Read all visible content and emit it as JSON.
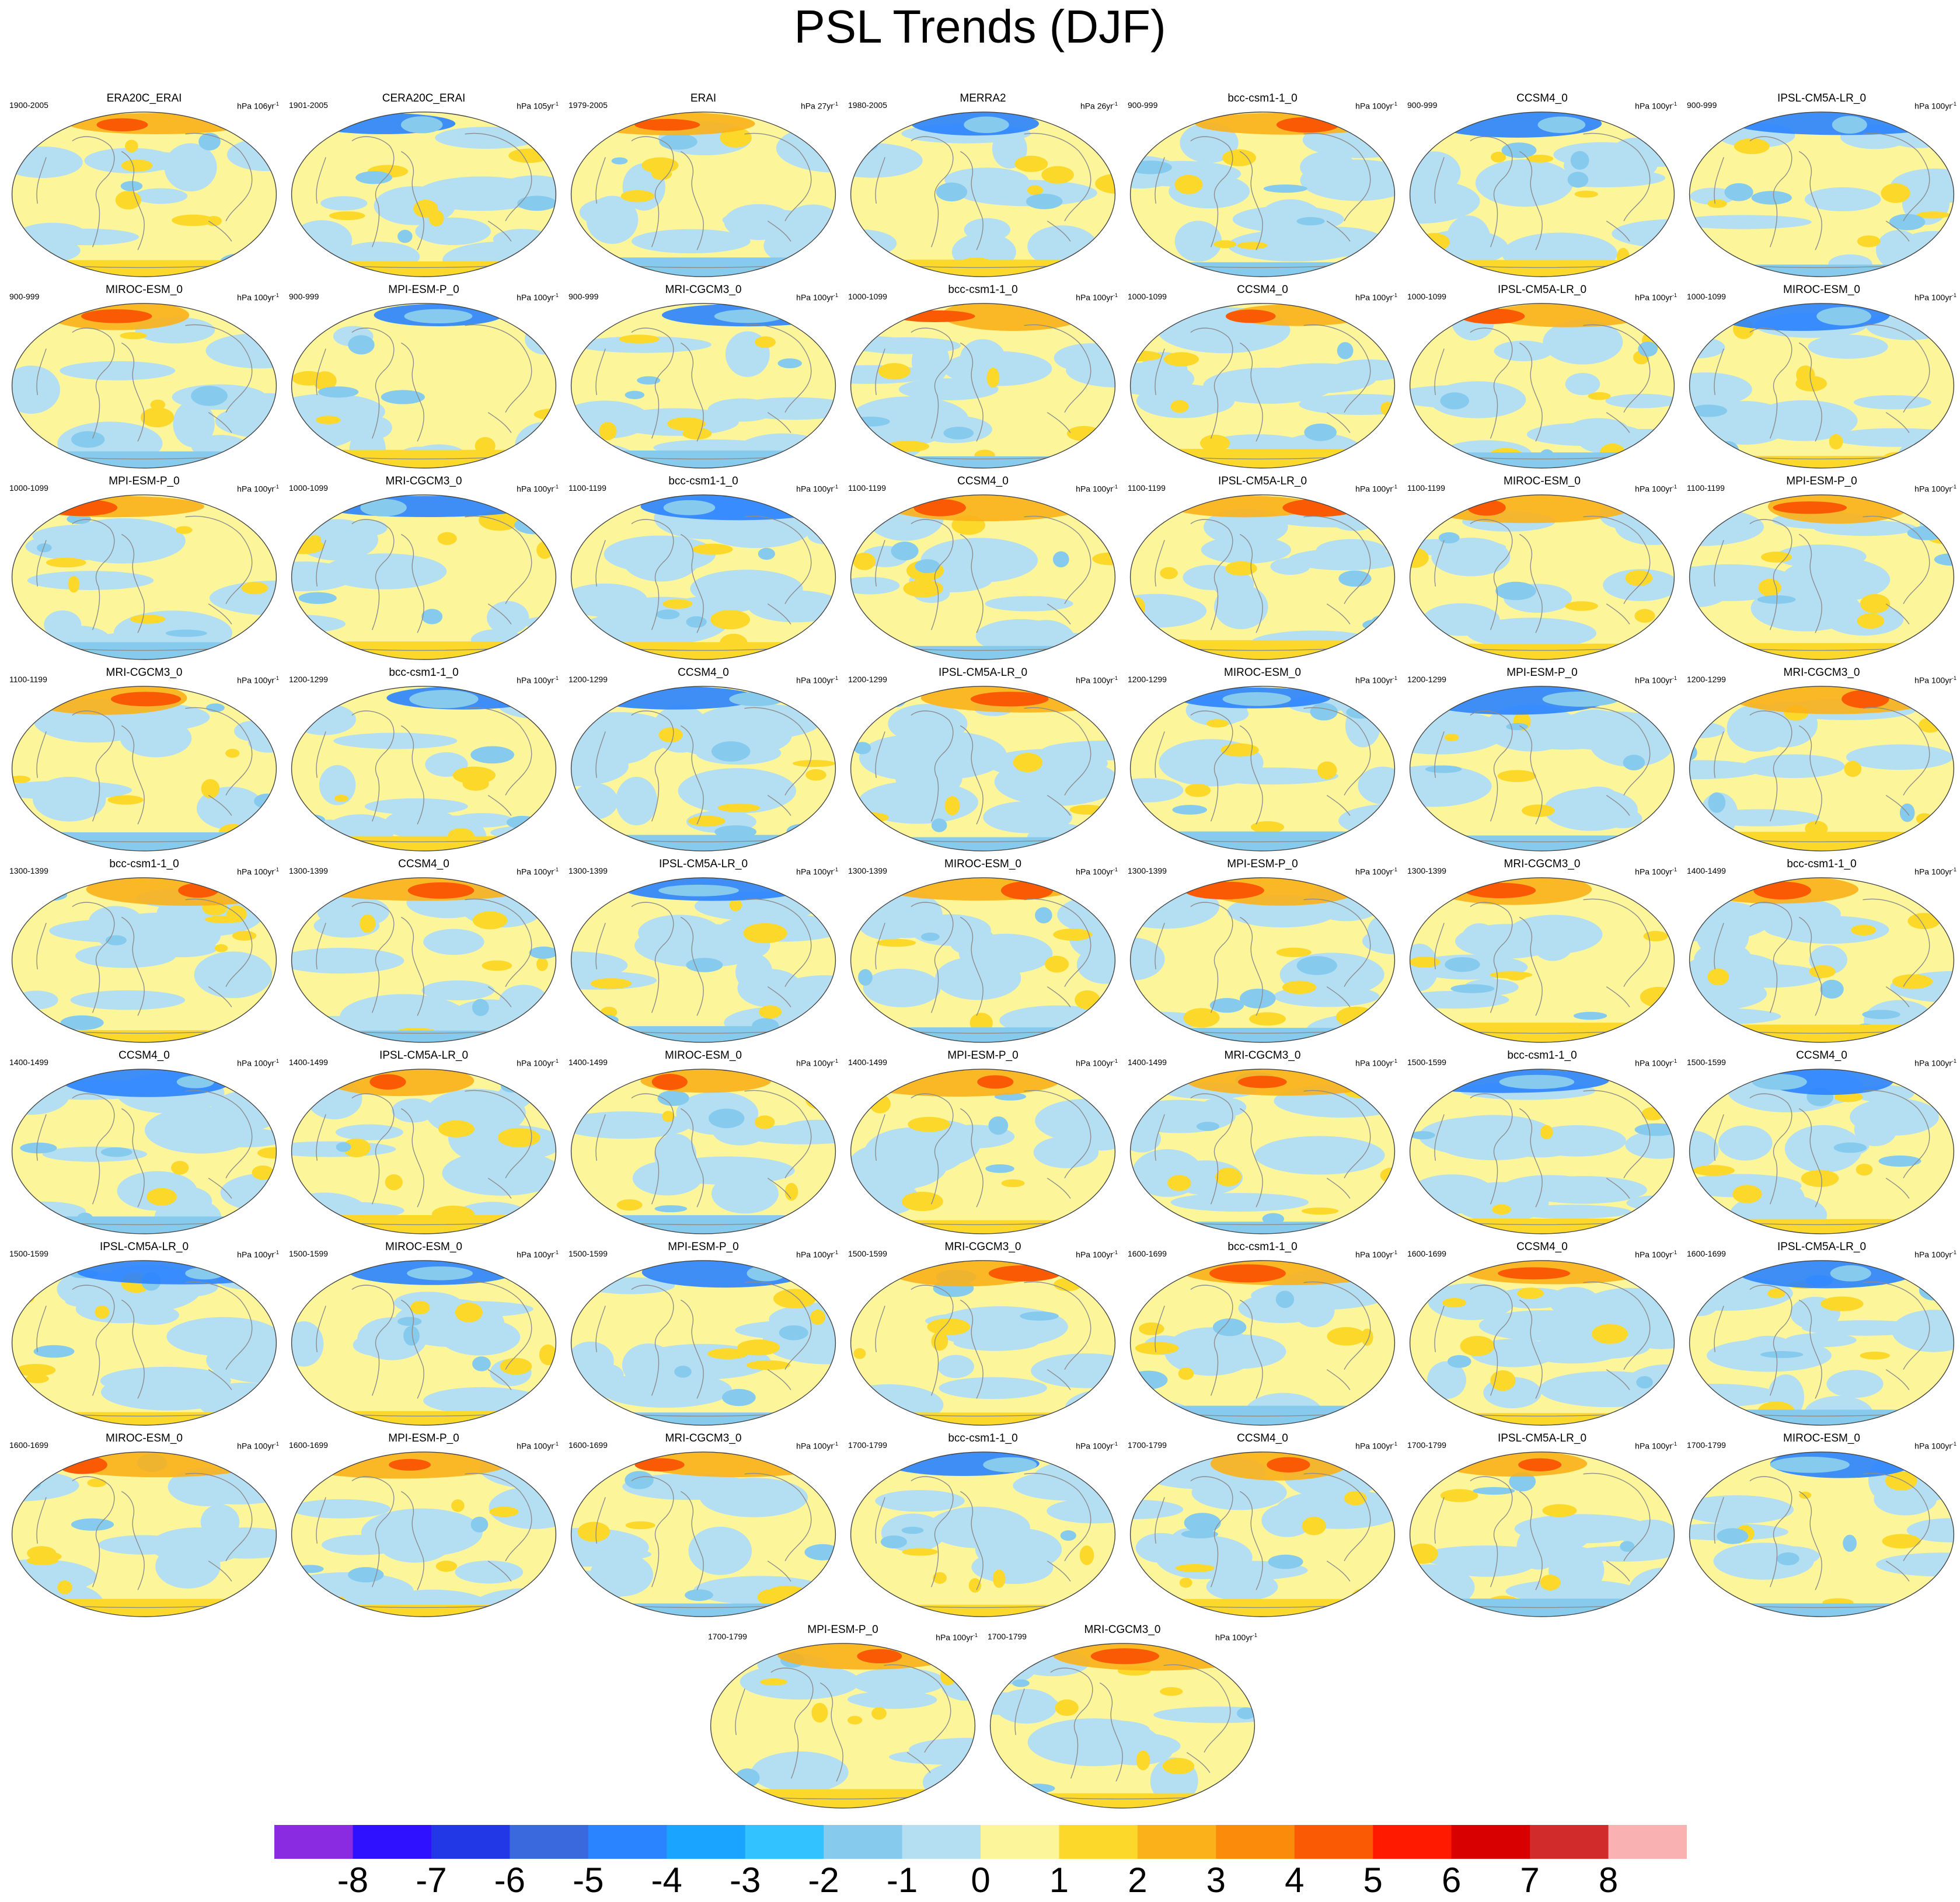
{
  "title": "PSL Trends (DJF)",
  "panels": [
    {
      "name": "ERA20C_ERAI",
      "period": "1900-2005",
      "units_base": "hPa 106yr",
      "units_exp": "-1"
    },
    {
      "name": "CERA20C_ERAI",
      "period": "1901-2005",
      "units_base": "hPa 105yr",
      "units_exp": "-1"
    },
    {
      "name": "ERAI",
      "period": "1979-2005",
      "units_base": "hPa 27yr",
      "units_exp": "-1"
    },
    {
      "name": "MERRA2",
      "period": "1980-2005",
      "units_base": "hPa 26yr",
      "units_exp": "-1"
    },
    {
      "name": "bcc-csm1-1_0",
      "period": "900-999",
      "units_base": "hPa 100yr",
      "units_exp": "-1"
    },
    {
      "name": "CCSM4_0",
      "period": "900-999",
      "units_base": "hPa 100yr",
      "units_exp": "-1"
    },
    {
      "name": "IPSL-CM5A-LR_0",
      "period": "900-999",
      "units_base": "hPa 100yr",
      "units_exp": "-1"
    },
    {
      "name": "MIROC-ESM_0",
      "period": "900-999",
      "units_base": "hPa 100yr",
      "units_exp": "-1"
    },
    {
      "name": "MPI-ESM-P_0",
      "period": "900-999",
      "units_base": "hPa 100yr",
      "units_exp": "-1"
    },
    {
      "name": "MRI-CGCM3_0",
      "period": "900-999",
      "units_base": "hPa 100yr",
      "units_exp": "-1"
    },
    {
      "name": "bcc-csm1-1_0",
      "period": "1000-1099",
      "units_base": "hPa 100yr",
      "units_exp": "-1"
    },
    {
      "name": "CCSM4_0",
      "period": "1000-1099",
      "units_base": "hPa 100yr",
      "units_exp": "-1"
    },
    {
      "name": "IPSL-CM5A-LR_0",
      "period": "1000-1099",
      "units_base": "hPa 100yr",
      "units_exp": "-1"
    },
    {
      "name": "MIROC-ESM_0",
      "period": "1000-1099",
      "units_base": "hPa 100yr",
      "units_exp": "-1"
    },
    {
      "name": "MPI-ESM-P_0",
      "period": "1000-1099",
      "units_base": "hPa 100yr",
      "units_exp": "-1"
    },
    {
      "name": "MRI-CGCM3_0",
      "period": "1000-1099",
      "units_base": "hPa 100yr",
      "units_exp": "-1"
    },
    {
      "name": "bcc-csm1-1_0",
      "period": "1100-1199",
      "units_base": "hPa 100yr",
      "units_exp": "-1"
    },
    {
      "name": "CCSM4_0",
      "period": "1100-1199",
      "units_base": "hPa 100yr",
      "units_exp": "-1"
    },
    {
      "name": "IPSL-CM5A-LR_0",
      "period": "1100-1199",
      "units_base": "hPa 100yr",
      "units_exp": "-1"
    },
    {
      "name": "MIROC-ESM_0",
      "period": "1100-1199",
      "units_base": "hPa 100yr",
      "units_exp": "-1"
    },
    {
      "name": "MPI-ESM-P_0",
      "period": "1100-1199",
      "units_base": "hPa 100yr",
      "units_exp": "-1"
    },
    {
      "name": "MRI-CGCM3_0",
      "period": "1100-1199",
      "units_base": "hPa 100yr",
      "units_exp": "-1"
    },
    {
      "name": "bcc-csm1-1_0",
      "period": "1200-1299",
      "units_base": "hPa 100yr",
      "units_exp": "-1"
    },
    {
      "name": "CCSM4_0",
      "period": "1200-1299",
      "units_base": "hPa 100yr",
      "units_exp": "-1"
    },
    {
      "name": "IPSL-CM5A-LR_0",
      "period": "1200-1299",
      "units_base": "hPa 100yr",
      "units_exp": "-1"
    },
    {
      "name": "MIROC-ESM_0",
      "period": "1200-1299",
      "units_base": "hPa 100yr",
      "units_exp": "-1"
    },
    {
      "name": "MPI-ESM-P_0",
      "period": "1200-1299",
      "units_base": "hPa 100yr",
      "units_exp": "-1"
    },
    {
      "name": "MRI-CGCM3_0",
      "period": "1200-1299",
      "units_base": "hPa 100yr",
      "units_exp": "-1"
    },
    {
      "name": "bcc-csm1-1_0",
      "period": "1300-1399",
      "units_base": "hPa 100yr",
      "units_exp": "-1"
    },
    {
      "name": "CCSM4_0",
      "period": "1300-1399",
      "units_base": "hPa 100yr",
      "units_exp": "-1"
    },
    {
      "name": "IPSL-CM5A-LR_0",
      "period": "1300-1399",
      "units_base": "hPa 100yr",
      "units_exp": "-1"
    },
    {
      "name": "MIROC-ESM_0",
      "period": "1300-1399",
      "units_base": "hPa 100yr",
      "units_exp": "-1"
    },
    {
      "name": "MPI-ESM-P_0",
      "period": "1300-1399",
      "units_base": "hPa 100yr",
      "units_exp": "-1"
    },
    {
      "name": "MRI-CGCM3_0",
      "period": "1300-1399",
      "units_base": "hPa 100yr",
      "units_exp": "-1"
    },
    {
      "name": "bcc-csm1-1_0",
      "period": "1400-1499",
      "units_base": "hPa 100yr",
      "units_exp": "-1"
    },
    {
      "name": "CCSM4_0",
      "period": "1400-1499",
      "units_base": "hPa 100yr",
      "units_exp": "-1"
    },
    {
      "name": "IPSL-CM5A-LR_0",
      "period": "1400-1499",
      "units_base": "hPa 100yr",
      "units_exp": "-1"
    },
    {
      "name": "MIROC-ESM_0",
      "period": "1400-1499",
      "units_base": "hPa 100yr",
      "units_exp": "-1"
    },
    {
      "name": "MPI-ESM-P_0",
      "period": "1400-1499",
      "units_base": "hPa 100yr",
      "units_exp": "-1"
    },
    {
      "name": "MRI-CGCM3_0",
      "period": "1400-1499",
      "units_base": "hPa 100yr",
      "units_exp": "-1"
    },
    {
      "name": "bcc-csm1-1_0",
      "period": "1500-1599",
      "units_base": "hPa 100yr",
      "units_exp": "-1"
    },
    {
      "name": "CCSM4_0",
      "period": "1500-1599",
      "units_base": "hPa 100yr",
      "units_exp": "-1"
    },
    {
      "name": "IPSL-CM5A-LR_0",
      "period": "1500-1599",
      "units_base": "hPa 100yr",
      "units_exp": "-1"
    },
    {
      "name": "MIROC-ESM_0",
      "period": "1500-1599",
      "units_base": "hPa 100yr",
      "units_exp": "-1"
    },
    {
      "name": "MPI-ESM-P_0",
      "period": "1500-1599",
      "units_base": "hPa 100yr",
      "units_exp": "-1"
    },
    {
      "name": "MRI-CGCM3_0",
      "period": "1500-1599",
      "units_base": "hPa 100yr",
      "units_exp": "-1"
    },
    {
      "name": "bcc-csm1-1_0",
      "period": "1600-1699",
      "units_base": "hPa 100yr",
      "units_exp": "-1"
    },
    {
      "name": "CCSM4_0",
      "period": "1600-1699",
      "units_base": "hPa 100yr",
      "units_exp": "-1"
    },
    {
      "name": "IPSL-CM5A-LR_0",
      "period": "1600-1699",
      "units_base": "hPa 100yr",
      "units_exp": "-1"
    },
    {
      "name": "MIROC-ESM_0",
      "period": "1600-1699",
      "units_base": "hPa 100yr",
      "units_exp": "-1"
    },
    {
      "name": "MPI-ESM-P_0",
      "period": "1600-1699",
      "units_base": "hPa 100yr",
      "units_exp": "-1"
    },
    {
      "name": "MRI-CGCM3_0",
      "period": "1600-1699",
      "units_base": "hPa 100yr",
      "units_exp": "-1"
    },
    {
      "name": "bcc-csm1-1_0",
      "period": "1700-1799",
      "units_base": "hPa 100yr",
      "units_exp": "-1"
    },
    {
      "name": "CCSM4_0",
      "period": "1700-1799",
      "units_base": "hPa 100yr",
      "units_exp": "-1"
    },
    {
      "name": "IPSL-CM5A-LR_0",
      "period": "1700-1799",
      "units_base": "hPa 100yr",
      "units_exp": "-1"
    },
    {
      "name": "MIROC-ESM_0",
      "period": "1700-1799",
      "units_base": "hPa 100yr",
      "units_exp": "-1"
    },
    {
      "name": "MPI-ESM-P_0",
      "period": "1700-1799",
      "units_base": "hPa 100yr",
      "units_exp": "-1"
    },
    {
      "name": "MRI-CGCM3_0",
      "period": "1700-1799",
      "units_base": "hPa 100yr",
      "units_exp": "-1"
    }
  ],
  "colorbar": {
    "labels": [
      "-8",
      "-7",
      "-6",
      "-5",
      "-4",
      "-3",
      "-2",
      "-1",
      "0",
      "1",
      "2",
      "3",
      "4",
      "5",
      "6",
      "7",
      "8"
    ],
    "colors": [
      "#8a2be2",
      "#2f10ff",
      "#2237e5",
      "#3a68dd",
      "#2a83ff",
      "#1aa3ff",
      "#32c2ff",
      "#86cbee",
      "#b4def2",
      "#fdf59a",
      "#fcd82b",
      "#fbb11a",
      "#fb8b0a",
      "#fb5a05",
      "#ff1a00",
      "#d80000",
      "#d12b2b",
      "#f9b1b1"
    ]
  },
  "palette": {
    "neg_strong": "#2a83ff",
    "neg_mid": "#86cbee",
    "neg_weak": "#b4def2",
    "pos_weak": "#fdf59a",
    "pos_mid": "#fcd82b",
    "pos_strong": "#fbb11a",
    "pos_vstrong": "#fb5a05",
    "coast": "#8c8c8c",
    "outline": "#444444"
  }
}
